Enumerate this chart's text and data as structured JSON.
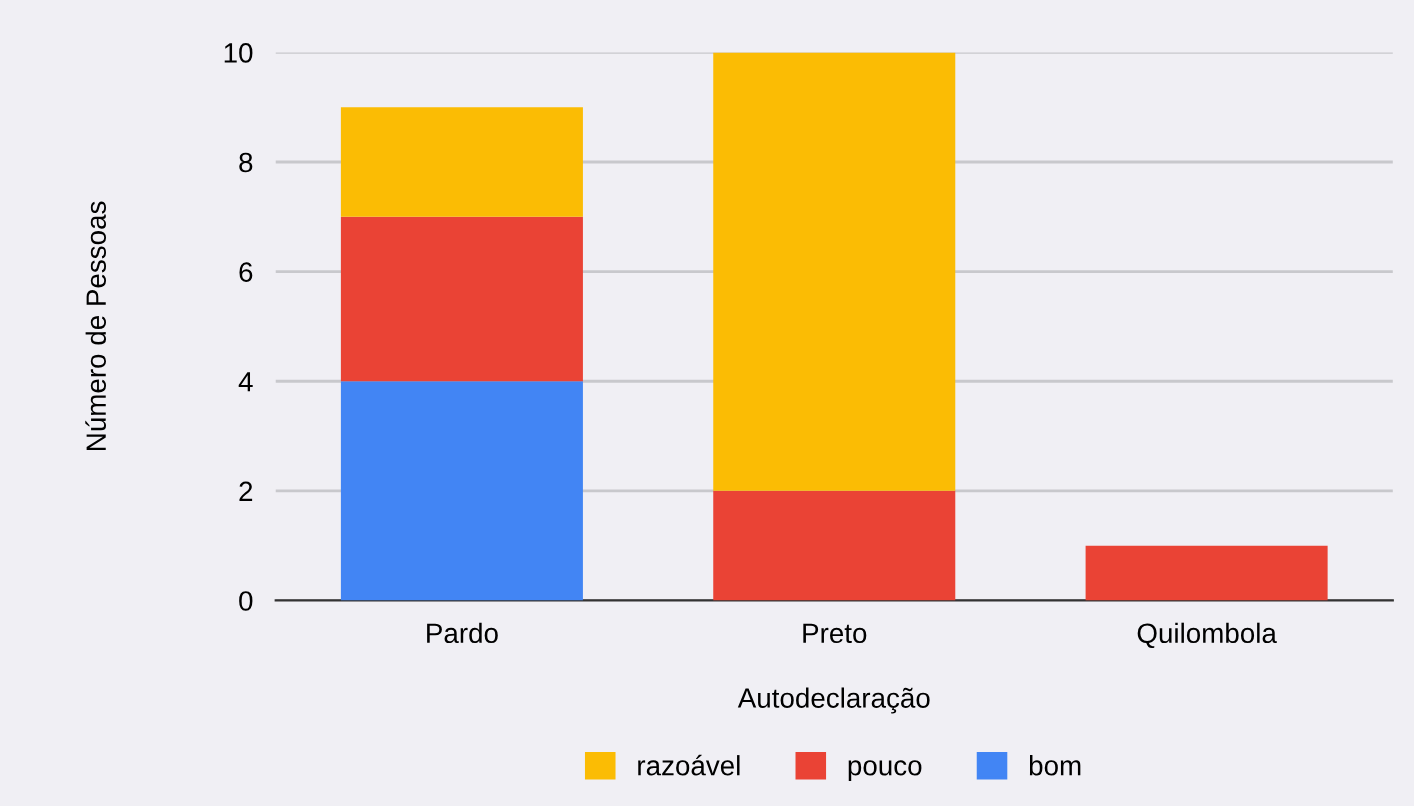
{
  "chart_data": {
    "type": "bar",
    "stacked": true,
    "xlabel": "Autodeclaração",
    "ylabel": "Número de Pessoas",
    "categories": [
      "Pardo",
      "Preto",
      "Quilombola"
    ],
    "series": [
      {
        "name": "bom",
        "color": "#4285f4",
        "values": [
          4,
          0,
          0
        ]
      },
      {
        "name": "pouco",
        "color": "#ea4335",
        "values": [
          3,
          2,
          1
        ]
      },
      {
        "name": "razoável",
        "color": "#fbbc04",
        "values": [
          2,
          8,
          0
        ]
      }
    ],
    "ylim": [
      0,
      10
    ],
    "yticks": [
      0,
      2,
      4,
      6,
      8,
      10
    ],
    "grid": "y",
    "legend": "bottom"
  }
}
